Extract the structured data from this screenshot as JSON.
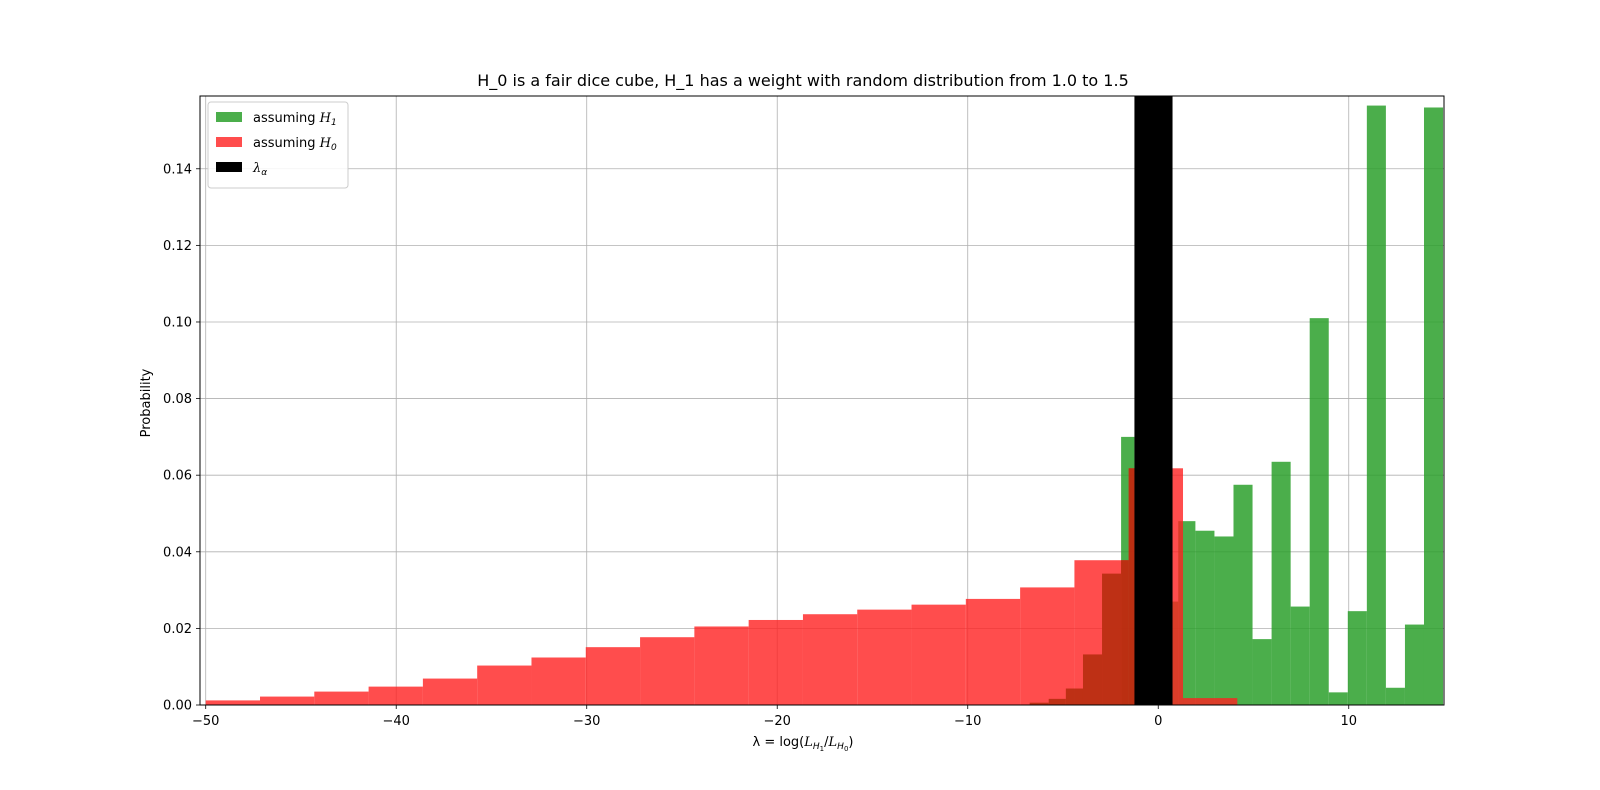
{
  "chart_data": {
    "type": "bar",
    "title": "H_0 is a fair dice cube, H_1 has a weight with random distribution from 1.0 to 1.5",
    "xlabel": {
      "prefix": "λ = log(",
      "num_letter": "L",
      "num_sub": "H",
      "num_subsub": "1",
      "sep": "/",
      "den_letter": "L",
      "den_sub": "H",
      "den_subsub": "0",
      "suffix": ")"
    },
    "ylabel": "Probability",
    "xlim": [
      -50.3,
      15.0
    ],
    "ylim": [
      0,
      0.159
    ],
    "xticks": [
      {
        "value": -50,
        "label": "−50"
      },
      {
        "value": -40,
        "label": "−40"
      },
      {
        "value": -30,
        "label": "−30"
      },
      {
        "value": -20,
        "label": "−20"
      },
      {
        "value": -10,
        "label": "−10"
      },
      {
        "value": 0,
        "label": "0"
      },
      {
        "value": 10,
        "label": "10"
      }
    ],
    "yticks": [
      {
        "value": 0,
        "label": "0.00"
      },
      {
        "value": 0.02,
        "label": "0.02"
      },
      {
        "value": 0.04,
        "label": "0.04"
      },
      {
        "value": 0.06,
        "label": "0.06"
      },
      {
        "value": 0.08,
        "label": "0.08"
      },
      {
        "value": 0.1,
        "label": "0.10"
      },
      {
        "value": 0.12,
        "label": "0.12"
      },
      {
        "value": 0.14,
        "label": "0.14"
      }
    ],
    "grid": true,
    "legend_position": "top-left",
    "series": [
      {
        "key": "h1",
        "legend_text": "assuming ",
        "legend_sym": "H",
        "legend_sub": "1",
        "color": "#2ca02c",
        "opacity": 0.85,
        "bins": [
          {
            "x0": -1.95,
            "x1": -1.25,
            "y": 0.07
          },
          {
            "x0": -1.25,
            "x1": 0.75,
            "y": 0.055
          },
          {
            "x0": 0.75,
            "x1": 1.05,
            "y": 0.027
          },
          {
            "x0": 1.05,
            "x1": 1.95,
            "y": 0.048
          },
          {
            "x0": 1.95,
            "x1": 2.95,
            "y": 0.0455
          },
          {
            "x0": 2.95,
            "x1": 3.95,
            "y": 0.044
          },
          {
            "x0": 3.95,
            "x1": 4.95,
            "y": 0.0575
          },
          {
            "x0": 4.95,
            "x1": 5.95,
            "y": 0.0172
          },
          {
            "x0": 5.95,
            "x1": 6.95,
            "y": 0.0635
          },
          {
            "x0": 6.95,
            "x1": 7.95,
            "y": 0.0257
          },
          {
            "x0": 7.95,
            "x1": 8.95,
            "y": 0.101
          },
          {
            "x0": 8.95,
            "x1": 9.95,
            "y": 0.0033
          },
          {
            "x0": 9.95,
            "x1": 10.95,
            "y": 0.0245
          },
          {
            "x0": 10.95,
            "x1": 11.95,
            "y": 0.1565
          },
          {
            "x0": 11.95,
            "x1": 12.95,
            "y": 0.0045
          },
          {
            "x0": 12.95,
            "x1": 13.95,
            "y": 0.021
          },
          {
            "x0": 13.95,
            "x1": 14.95,
            "y": 0.156
          }
        ]
      },
      {
        "key": "h0",
        "legend_text": "assuming ",
        "legend_sym": "H",
        "legend_sub": "0",
        "color": "#ff2020",
        "opacity": 0.8,
        "bins": [
          {
            "x0": -50.0,
            "x1": -47.15,
            "y": 0.0012
          },
          {
            "x0": -47.15,
            "x1": -44.3,
            "y": 0.0022
          },
          {
            "x0": -44.3,
            "x1": -41.45,
            "y": 0.0035
          },
          {
            "x0": -41.45,
            "x1": -38.6,
            "y": 0.0048
          },
          {
            "x0": -38.6,
            "x1": -35.75,
            "y": 0.0069
          },
          {
            "x0": -35.75,
            "x1": -32.9,
            "y": 0.0103
          },
          {
            "x0": -32.9,
            "x1": -30.05,
            "y": 0.0124
          },
          {
            "x0": -30.05,
            "x1": -27.2,
            "y": 0.0151
          },
          {
            "x0": -27.2,
            "x1": -24.35,
            "y": 0.0177
          },
          {
            "x0": -24.35,
            "x1": -21.5,
            "y": 0.0205
          },
          {
            "x0": -21.5,
            "x1": -18.65,
            "y": 0.0222
          },
          {
            "x0": -18.65,
            "x1": -15.8,
            "y": 0.0237
          },
          {
            "x0": -15.8,
            "x1": -12.95,
            "y": 0.0249
          },
          {
            "x0": -12.95,
            "x1": -10.1,
            "y": 0.0262
          },
          {
            "x0": -10.1,
            "x1": -7.25,
            "y": 0.0277
          },
          {
            "x0": -7.25,
            "x1": -4.4,
            "y": 0.0307
          },
          {
            "x0": -4.4,
            "x1": -1.55,
            "y": 0.0378
          },
          {
            "x0": -1.55,
            "x1": 1.3,
            "y": 0.0618
          },
          {
            "x0": 1.3,
            "x1": 4.15,
            "y": 0.0018
          }
        ]
      },
      {
        "key": "h1_cross",
        "color": "#b72e10",
        "opacity": 0.9,
        "bins": [
          {
            "x0": -6.75,
            "x1": -5.75,
            "y": 0.0006
          },
          {
            "x0": -5.75,
            "x1": -4.85,
            "y": 0.0016
          },
          {
            "x0": -4.85,
            "x1": -3.95,
            "y": 0.0043
          },
          {
            "x0": -3.95,
            "x1": -2.95,
            "y": 0.0132
          },
          {
            "x0": -2.95,
            "x1": -1.95,
            "y": 0.0343
          },
          {
            "x0": -1.95,
            "x1": -1.55,
            "y": 0.0378
          },
          {
            "x0": -1.55,
            "x1": -1.25,
            "y": 0.0618
          }
        ]
      },
      {
        "key": "lambda_alpha",
        "legend_text": "",
        "legend_sym": "λ",
        "legend_sub": "α",
        "color": "#000000",
        "opacity": 1,
        "bins": [
          {
            "x0": -1.25,
            "x1": 0.75,
            "y": 0.159
          }
        ]
      }
    ]
  }
}
